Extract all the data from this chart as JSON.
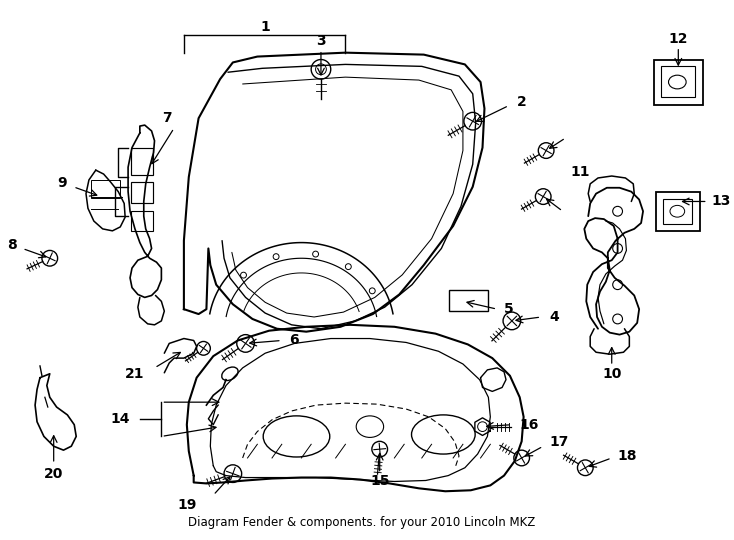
{
  "title": "Diagram Fender & components. for your 2010 Lincoln MKZ",
  "bg_color": "#ffffff",
  "line_color": "#000000",
  "figsize": [
    7.34,
    5.4
  ],
  "dpi": 100
}
